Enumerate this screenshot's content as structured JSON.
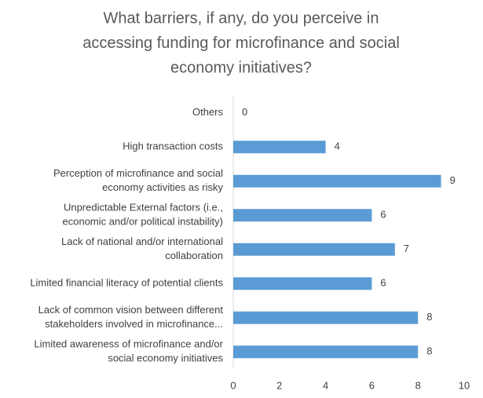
{
  "chart_data": {
    "type": "bar",
    "orientation": "horizontal",
    "title": [
      "What barriers, if any, do you perceive in",
      "accessing funding for microfinance and social",
      "economy initiatives?"
    ],
    "categories": [
      [
        "Others"
      ],
      [
        "High transaction costs"
      ],
      [
        "Perception of microfinance and social",
        "economy activities as risky"
      ],
      [
        "Unpredictable External factors (i.e.,",
        "economic and/or political instability)"
      ],
      [
        "Lack of national and/or international",
        "collaboration"
      ],
      [
        "Limited financial literacy of potential clients"
      ],
      [
        "Lack of common vision between different",
        "stakeholders involved in microfinance..."
      ],
      [
        "Limited awareness of microfinance and/or",
        "social economy initiatives"
      ]
    ],
    "values": [
      0,
      4,
      9,
      6,
      7,
      6,
      8,
      8
    ],
    "color": "#5b9bd5",
    "xlim": [
      0,
      10
    ],
    "xticks": [
      0,
      2,
      4,
      6,
      8,
      10
    ],
    "grid": false
  }
}
